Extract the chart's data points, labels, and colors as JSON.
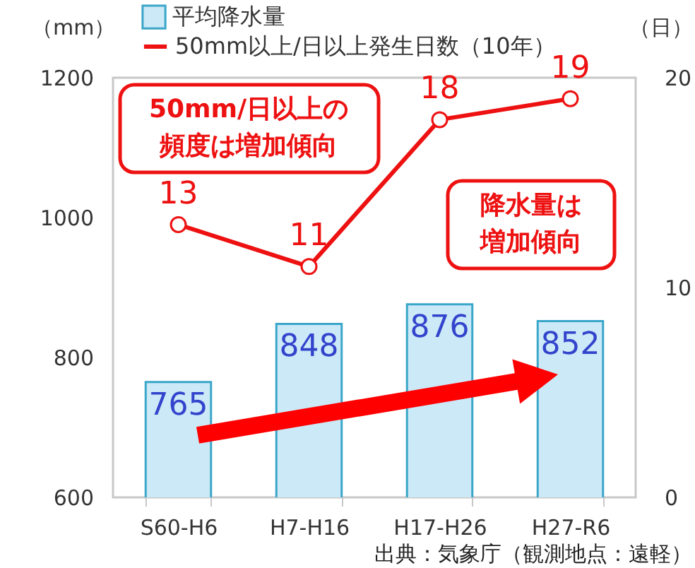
{
  "chart_data": {
    "type": "bar",
    "categories": [
      "S60-H6",
      "H7-H16",
      "H17-H26",
      "H27-R6"
    ],
    "series": [
      {
        "name": "平均降水量",
        "color": "#cce9f8",
        "values": [
          765,
          848,
          876,
          852
        ]
      },
      {
        "name": "50mm以上/日以上発生日数（10年）",
        "type": "line",
        "axis": "y2",
        "color": "#ee1111",
        "values": [
          13,
          11,
          18,
          19
        ]
      }
    ],
    "ylabel": "（mm）",
    "y2label": "（日）",
    "ylim": [
      600,
      1200
    ],
    "yticks": [
      600,
      800,
      1000,
      1200
    ],
    "y2lim": [
      0,
      20
    ],
    "y2ticks": [
      0,
      10,
      20
    ],
    "data_labels": true,
    "marker": "circle",
    "legend": "top",
    "annotations": [
      "50mm/日以上の頻度は増加傾向",
      "降水量は増加傾向",
      "出典：気象庁（観測地点：遠軽）"
    ]
  }
}
